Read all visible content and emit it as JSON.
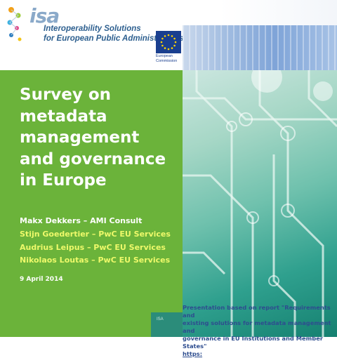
{
  "header": {
    "brand_word": "isa",
    "tagline_line1": "Interoperability Solutions",
    "tagline_line2": "for European Public Administrations",
    "ec_label_line1": "European",
    "ec_label_line2": "Commission"
  },
  "slide": {
    "title_lines": [
      "Survey on",
      "metadata",
      "management",
      "and governance",
      "in Europe"
    ],
    "presenter": "Makx Dekkers – AMI Consult",
    "coauthors": [
      "Stijn Goedertier – PwC EU Services",
      "Audrius Leipus – PwC EU Services",
      "Nikolaos Loutas – PwC EU Services"
    ],
    "date": "9 April 2014"
  },
  "footer": {
    "strip_label": "ISA",
    "note_line1": "Presentation based on report \"Requirements and",
    "note_line2": "existing solutions for metadata management and",
    "note_line3": "governance in EU Institutions and Member States\"",
    "note_link": "https:"
  },
  "colors": {
    "green_panel": "#6bb33a",
    "title_text": "#ffffff",
    "coauthor_text": "#eef96a",
    "note_text": "#2e4d8f",
    "ec_blue": "#1a3f8f"
  }
}
